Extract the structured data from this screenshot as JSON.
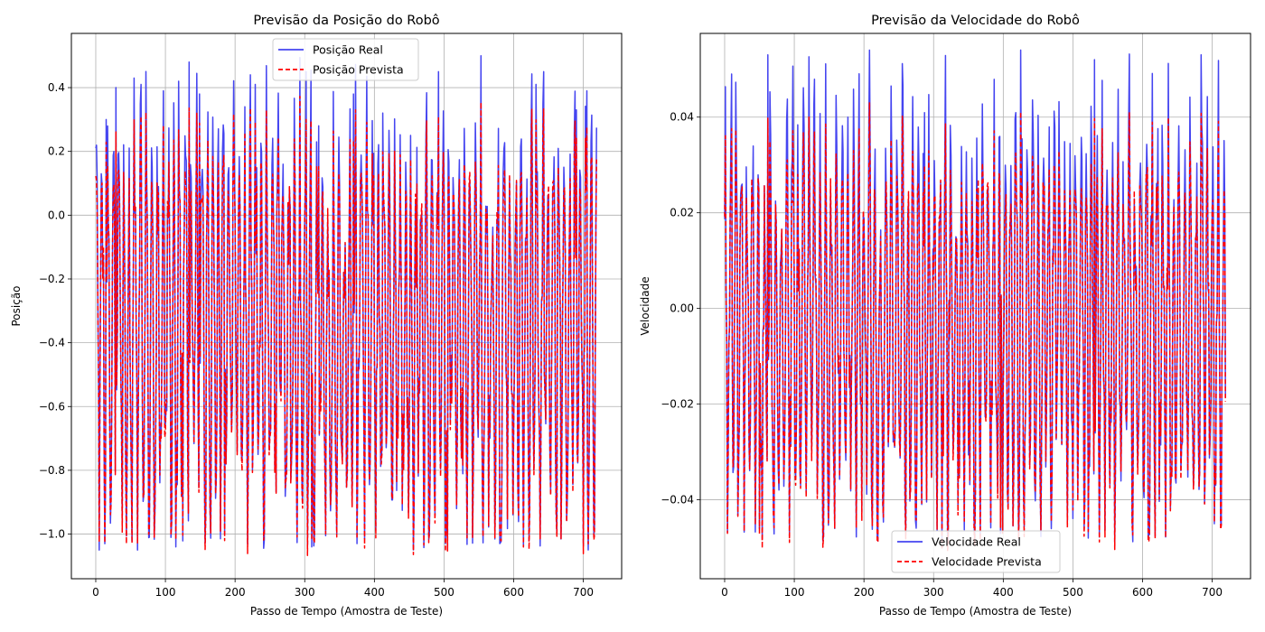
{
  "chart_data": [
    {
      "type": "line",
      "title": "Previsão da Posição do Robô",
      "xlabel": "Passo de Tempo (Amostra de Teste)",
      "ylabel": "Posição",
      "xlim": [
        -35,
        755
      ],
      "ylim": [
        -1.14,
        0.57
      ],
      "xticks": [
        0,
        100,
        200,
        300,
        400,
        500,
        600,
        700
      ],
      "yticks": [
        -1.0,
        -0.8,
        -0.6,
        -0.4,
        -0.2,
        0.0,
        0.2,
        0.4
      ],
      "xtick_labels": [
        "0",
        "100",
        "200",
        "300",
        "400",
        "500",
        "600",
        "700"
      ],
      "ytick_labels": [
        "−1.0",
        "−0.8",
        "−0.6",
        "−0.4",
        "−0.2",
        "0.0",
        "0.2",
        "0.4"
      ],
      "grid": true,
      "legend_position": "top-center",
      "n_points": 720,
      "series": [
        {
          "name": "Posição Real",
          "color": "#4545f0",
          "style": "solid"
        },
        {
          "name": "Posição Prevista",
          "color": "#ff0000",
          "style": "dashed"
        }
      ],
      "observed_range": {
        "min": -1.05,
        "max": 0.5
      },
      "peaks": [
        {
          "x": 0,
          "y": 0.21
        },
        {
          "x": 15,
          "y": 0.3
        },
        {
          "x": 29,
          "y": 0.4
        },
        {
          "x": 55,
          "y": 0.43
        },
        {
          "x": 65,
          "y": 0.41
        },
        {
          "x": 97,
          "y": 0.39
        },
        {
          "x": 119,
          "y": 0.42
        },
        {
          "x": 134,
          "y": 0.48
        },
        {
          "x": 149,
          "y": 0.38
        },
        {
          "x": 214,
          "y": 0.34
        },
        {
          "x": 229,
          "y": 0.41
        },
        {
          "x": 302,
          "y": 0.45
        },
        {
          "x": 320,
          "y": 0.28
        },
        {
          "x": 370,
          "y": 0.38
        },
        {
          "x": 412,
          "y": 0.32
        },
        {
          "x": 492,
          "y": 0.45
        },
        {
          "x": 553,
          "y": 0.5
        },
        {
          "x": 632,
          "y": 0.41
        },
        {
          "x": 643,
          "y": 0.45
        },
        {
          "x": 690,
          "y": 0.33
        },
        {
          "x": 705,
          "y": 0.39
        }
      ],
      "troughs": [
        {
          "x": 5,
          "y": -1.05
        },
        {
          "x": 60,
          "y": -1.05
        },
        {
          "x": 115,
          "y": -1.04
        },
        {
          "x": 185,
          "y": -1.0
        },
        {
          "x": 310,
          "y": -1.04
        },
        {
          "x": 375,
          "y": -1.03
        },
        {
          "x": 505,
          "y": -1.05
        },
        {
          "x": 580,
          "y": -1.03
        },
        {
          "x": 662,
          "y": -1.0
        }
      ]
    },
    {
      "type": "line",
      "title": "Previsão da Velocidade do Robô",
      "xlabel": "Passo de Tempo (Amostra de Teste)",
      "ylabel": "Velocidade",
      "xlim": [
        -35,
        755
      ],
      "ylim": [
        -0.0565,
        0.0575
      ],
      "xticks": [
        0,
        100,
        200,
        300,
        400,
        500,
        600,
        700
      ],
      "yticks": [
        -0.04,
        -0.02,
        0.0,
        0.02,
        0.04
      ],
      "xtick_labels": [
        "0",
        "100",
        "200",
        "300",
        "400",
        "500",
        "600",
        "700"
      ],
      "ytick_labels": [
        "−0.04",
        "−0.02",
        "0.00",
        "0.02",
        "0.04"
      ],
      "grid": true,
      "legend_position": "bottom-center",
      "n_points": 720,
      "series": [
        {
          "name": "Velocidade Real",
          "color": "#4545f0",
          "style": "solid"
        },
        {
          "name": "Velocidade Prevista",
          "color": "#ff0000",
          "style": "dashed"
        }
      ],
      "observed_range": {
        "min": -0.049,
        "max": 0.054
      },
      "peaks": [
        {
          "x": 10,
          "y": 0.049
        },
        {
          "x": 62,
          "y": 0.053
        },
        {
          "x": 208,
          "y": 0.054
        },
        {
          "x": 425,
          "y": 0.054
        },
        {
          "x": 531,
          "y": 0.052
        },
        {
          "x": 684,
          "y": 0.053
        }
      ],
      "troughs": [
        {
          "x": 50,
          "y": -0.046
        },
        {
          "x": 158,
          "y": -0.046
        },
        {
          "x": 396,
          "y": -0.047
        },
        {
          "x": 522,
          "y": -0.048
        },
        {
          "x": 608,
          "y": -0.048
        },
        {
          "x": 703,
          "y": -0.045
        }
      ]
    }
  ]
}
